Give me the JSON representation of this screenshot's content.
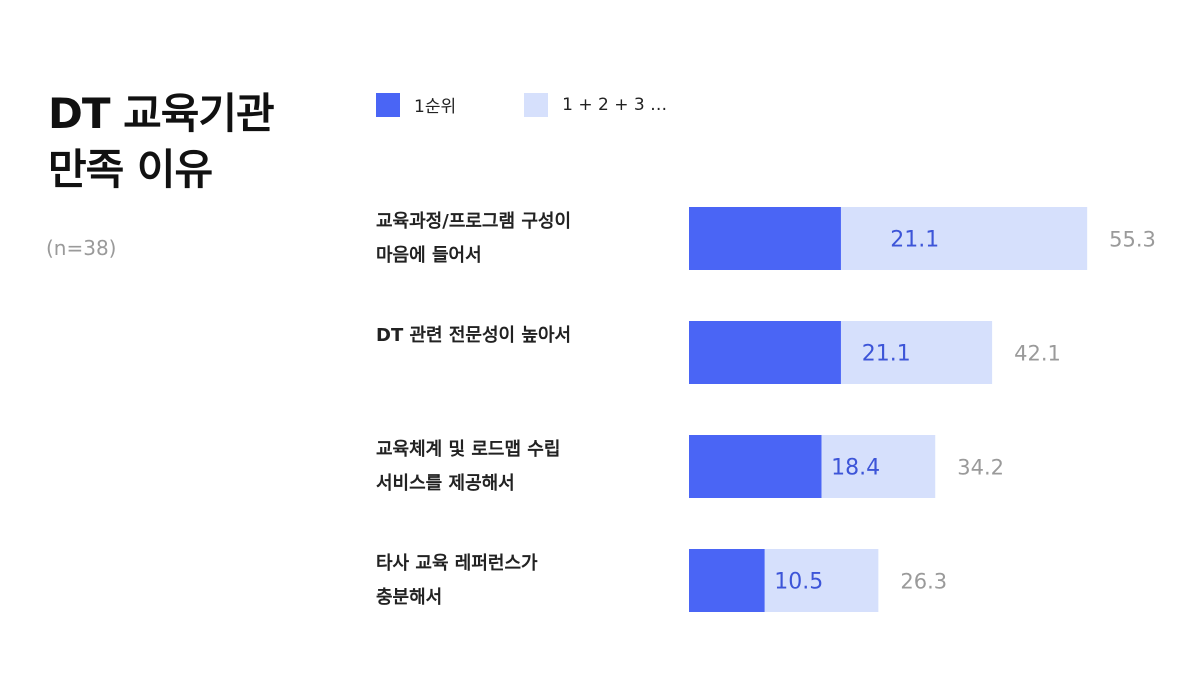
{
  "title": {
    "line1": "DT 교육기관",
    "line2": "만족 이유"
  },
  "sample": "(n=38)",
  "colors": {
    "first": "#4a65f5",
    "total": "#d6e0fc",
    "title": "#111111",
    "muted": "#9a9a9a"
  },
  "chart_data": {
    "type": "bar",
    "orientation": "horizontal",
    "stacked_overlay": true,
    "categories": [
      [
        "교육과정/프로그램 구성이",
        "마음에 들어서"
      ],
      [
        "DT 관련 전문성이 높아서"
      ],
      [
        "교육체계 및 로드맵 수립",
        "서비스를 제공해서"
      ],
      [
        "타사 교육 레퍼런스가",
        "충분해서"
      ]
    ],
    "series": [
      {
        "name": "1순위",
        "values": [
          21.1,
          21.1,
          18.4,
          10.5
        ]
      },
      {
        "name": "1 + 2 + 3 …",
        "values": [
          55.3,
          42.1,
          34.2,
          26.3
        ]
      }
    ],
    "legend_position": "top",
    "grid": false
  }
}
